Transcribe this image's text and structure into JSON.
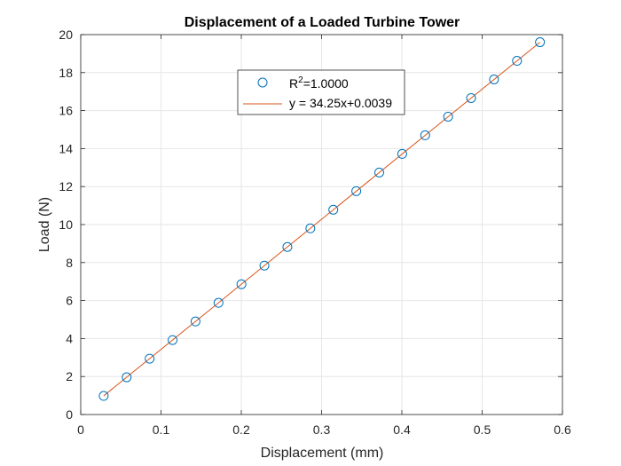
{
  "chart_data": {
    "type": "scatter",
    "title": "Displacement of a Loaded Turbine Tower",
    "xlabel": "Displacement (mm)",
    "ylabel": "Load (N)",
    "xlim": [
      0,
      0.6
    ],
    "ylim": [
      0,
      20
    ],
    "xticks": [
      "0",
      "0.1",
      "0.2",
      "0.3",
      "0.4",
      "0.5",
      "0.6"
    ],
    "yticks": [
      "0",
      "2",
      "4",
      "6",
      "8",
      "10",
      "12",
      "14",
      "16",
      "18",
      "20"
    ],
    "grid": true,
    "legend_position": "top-center",
    "colors": {
      "points": "#0072BD",
      "fit": "#D95319"
    },
    "series": [
      {
        "name": "R²=1.0000",
        "kind": "scatter",
        "x": [
          0.0286,
          0.0572,
          0.0858,
          0.1144,
          0.143,
          0.1716,
          0.2002,
          0.2288,
          0.2574,
          0.286,
          0.3146,
          0.3432,
          0.3718,
          0.4004,
          0.429,
          0.4576,
          0.4862,
          0.5148,
          0.5434,
          0.572
        ],
        "y": [
          0.98,
          1.96,
          2.94,
          3.92,
          4.9,
          5.88,
          6.86,
          7.84,
          8.82,
          9.8,
          10.78,
          11.76,
          12.74,
          13.72,
          14.7,
          15.68,
          16.66,
          17.64,
          18.62,
          19.6
        ]
      },
      {
        "name": "y = 34.25x+0.0039",
        "kind": "line",
        "x": [
          0.0286,
          0.572
        ],
        "y": [
          0.9835,
          19.5949
        ]
      }
    ]
  }
}
